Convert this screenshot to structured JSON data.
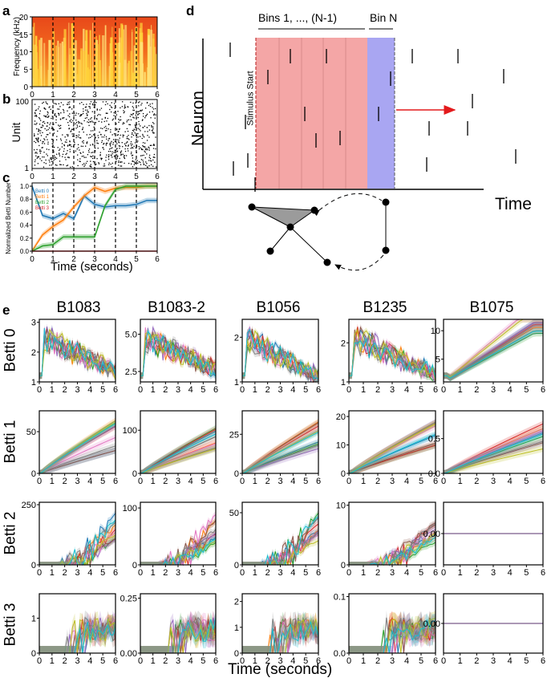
{
  "panels": {
    "a": {
      "letter": "a",
      "ylabel": "Frequency (kHz)",
      "yticks": [
        "0",
        "5",
        "10",
        "15",
        "20"
      ],
      "xticks": [
        "0",
        "1",
        "2",
        "3",
        "4",
        "5",
        "6"
      ]
    },
    "b": {
      "letter": "b",
      "ylabel": "Unit",
      "yticks": [
        "1",
        "100"
      ],
      "xticks": [
        "0",
        "1",
        "2",
        "3",
        "4",
        "5",
        "6"
      ]
    },
    "c": {
      "letter": "c",
      "ylabel": "Normalized Betti Number",
      "xlabel": "Time (seconds)",
      "yticks": [
        "0.0",
        "0.2",
        "0.4",
        "0.6",
        "0.8",
        "1.0"
      ],
      "xticks": [
        "0",
        "1",
        "2",
        "3",
        "4",
        "5",
        "6"
      ],
      "legend": [
        {
          "name": "Betti 0",
          "color": "#1f77b4"
        },
        {
          "name": "Betti 1",
          "color": "#ff7f0e"
        },
        {
          "name": "Betti 2",
          "color": "#2ca02c"
        },
        {
          "name": "Betti 3",
          "color": "#d62728"
        }
      ]
    },
    "d": {
      "letter": "d",
      "ylabel": "Neuron",
      "xlabel": "Time",
      "bins_label": "Bins 1, ..., (N-1)",
      "binN_label": "Bin N",
      "stimulus_label": "Stimulus Start"
    },
    "e": {
      "letter": "e",
      "xlabel": "Time (seconds)",
      "columns": [
        "B1083",
        "B1083-2",
        "B1056",
        "B1235",
        "B1075"
      ],
      "rows": [
        "Betti 0",
        "Betti 1",
        "Betti 2",
        "Betti 3"
      ],
      "xticks": [
        "0",
        "1",
        "2",
        "3",
        "4",
        "5",
        "6"
      ]
    }
  },
  "colors": {
    "betti0": "#1f77b4",
    "betti1": "#ff7f0e",
    "betti2": "#2ca02c",
    "betti3": "#d62728",
    "bins_fill": "#f4a6a6",
    "binN_fill": "#a9a6f2",
    "arrow": "#e31a1c"
  },
  "chart_data": [
    {
      "panel": "a",
      "type": "heatmap",
      "title": "",
      "xlabel": "",
      "ylabel": "Frequency (kHz)",
      "xlim": [
        0,
        6
      ],
      "ylim": [
        0,
        20
      ],
      "vlines": [
        1,
        2,
        3,
        4,
        5
      ]
    },
    {
      "panel": "b",
      "type": "scatter",
      "title": "",
      "xlabel": "",
      "ylabel": "Unit",
      "xlim": [
        0,
        6
      ],
      "ylim": [
        1,
        100
      ],
      "vlines": [
        1,
        2,
        3,
        4,
        5
      ]
    },
    {
      "panel": "c",
      "type": "line",
      "title": "",
      "xlabel": "Time (seconds)",
      "ylabel": "Normalized Betti Number",
      "xlim": [
        0,
        6
      ],
      "ylim": [
        0,
        1.05
      ],
      "vlines": [
        1,
        2,
        3,
        4,
        5
      ],
      "x": [
        0,
        0.5,
        1,
        1.5,
        2,
        2.5,
        3,
        3.5,
        4,
        4.5,
        5,
        5.5,
        6
      ],
      "series": [
        {
          "name": "Betti 0",
          "values": [
            1.0,
            0.55,
            0.5,
            0.58,
            0.5,
            0.85,
            0.72,
            0.68,
            0.7,
            0.7,
            0.72,
            0.78,
            0.78
          ]
        },
        {
          "name": "Betti 1",
          "values": [
            0.0,
            0.25,
            0.38,
            0.48,
            0.68,
            0.85,
            0.98,
            0.92,
            0.97,
            0.98,
            0.98,
            1.0,
            1.0
          ]
        },
        {
          "name": "Betti 2",
          "values": [
            0.0,
            0.08,
            0.1,
            0.22,
            0.22,
            0.22,
            0.22,
            0.7,
            0.95,
            1.0,
            1.0,
            1.0,
            1.0
          ]
        },
        {
          "name": "Betti 3",
          "values": [
            0,
            0,
            0,
            0,
            0,
            0,
            0,
            0,
            0,
            0,
            0,
            0,
            0
          ]
        }
      ]
    },
    {
      "panel": "e",
      "type": "line",
      "title": "B1083 Betti 0",
      "ylim": [
        1,
        3.1
      ],
      "yticks": [
        "1",
        "2",
        "3"
      ],
      "xlim": [
        0,
        6
      ]
    },
    {
      "panel": "e",
      "type": "line",
      "title": "B1083-2 Betti 0",
      "ylim": [
        1.8,
        6
      ],
      "yticks": [
        "2.5",
        "5.0"
      ],
      "xlim": [
        0,
        6
      ]
    },
    {
      "panel": "e",
      "type": "line",
      "title": "B1056 Betti 0",
      "ylim": [
        1,
        2.4
      ],
      "yticks": [
        "1",
        "2"
      ],
      "xlim": [
        0,
        6
      ]
    },
    {
      "panel": "e",
      "type": "line",
      "title": "B1235 Betti 0",
      "ylim": [
        1,
        2.6
      ],
      "yticks": [
        "1",
        "2"
      ],
      "xlim": [
        0,
        6
      ]
    },
    {
      "panel": "e",
      "type": "line",
      "title": "B1075 Betti 0",
      "ylim": [
        1,
        12
      ],
      "yticks": [
        "5",
        "10"
      ],
      "xlim": [
        0,
        6
      ]
    },
    {
      "panel": "e",
      "type": "line",
      "title": "B1083 Betti 1",
      "ylim": [
        0,
        75
      ],
      "yticks": [
        "0",
        "50"
      ],
      "xlim": [
        0,
        6
      ]
    },
    {
      "panel": "e",
      "type": "line",
      "title": "B1083-2 Betti 1",
      "ylim": [
        0,
        145
      ],
      "yticks": [
        "0",
        "100"
      ],
      "xlim": [
        0,
        6
      ]
    },
    {
      "panel": "e",
      "type": "line",
      "title": "B1056 Betti 1",
      "ylim": [
        0,
        40
      ],
      "yticks": [
        "0",
        "25"
      ],
      "xlim": [
        0,
        6
      ]
    },
    {
      "panel": "e",
      "type": "line",
      "title": "B1235 Betti 1",
      "ylim": [
        0,
        22
      ],
      "yticks": [
        "0",
        "10",
        "20"
      ],
      "xlim": [
        0,
        6
      ]
    },
    {
      "panel": "e",
      "type": "line",
      "title": "B1075 Betti 1",
      "ylim": [
        0,
        0.9
      ],
      "yticks": [
        "0.0",
        "0.5"
      ],
      "xlim": [
        0,
        6
      ]
    },
    {
      "panel": "e",
      "type": "line",
      "title": "B1083 Betti 2",
      "ylim": [
        0,
        260
      ],
      "yticks": [
        "0",
        "250"
      ],
      "xlim": [
        0,
        6
      ]
    },
    {
      "panel": "e",
      "type": "line",
      "title": "B1083-2 Betti 2",
      "ylim": [
        0,
        110
      ],
      "yticks": [
        "0",
        "100"
      ],
      "xlim": [
        0,
        6
      ]
    },
    {
      "panel": "e",
      "type": "line",
      "title": "B1056 Betti 2",
      "ylim": [
        0,
        60
      ],
      "yticks": [
        "0",
        "50"
      ],
      "xlim": [
        0,
        6
      ]
    },
    {
      "panel": "e",
      "type": "line",
      "title": "B1235 Betti 2",
      "ylim": [
        0,
        10.5
      ],
      "yticks": [
        "0",
        "10"
      ],
      "xlim": [
        0,
        6
      ]
    },
    {
      "panel": "e",
      "type": "line",
      "title": "B1075 Betti 2",
      "ylim": [
        -1,
        1
      ],
      "yticks": [
        "0.00"
      ],
      "xlim": [
        0,
        6
      ]
    },
    {
      "panel": "e",
      "type": "line",
      "title": "B1083 Betti 3",
      "ylim": [
        0,
        1.7
      ],
      "yticks": [
        "0",
        "1"
      ],
      "xlim": [
        0,
        6
      ]
    },
    {
      "panel": "e",
      "type": "line",
      "title": "B1083-2 Betti 3",
      "ylim": [
        0,
        0.27
      ],
      "yticks": [
        "0.00",
        "0.25"
      ],
      "xlim": [
        0,
        6
      ]
    },
    {
      "panel": "e",
      "type": "line",
      "title": "B1056 Betti 3",
      "ylim": [
        0,
        2.3
      ],
      "yticks": [
        "0",
        "1",
        "2"
      ],
      "xlim": [
        0,
        6
      ]
    },
    {
      "panel": "e",
      "type": "line",
      "title": "B1235 Betti 3",
      "ylim": [
        0,
        0.105
      ],
      "yticks": [
        "0.0",
        "0.1"
      ],
      "xlim": [
        0,
        6
      ]
    },
    {
      "panel": "e",
      "type": "line",
      "title": "B1075 Betti 3",
      "ylim": [
        -1,
        1
      ],
      "yticks": [
        "0.00"
      ],
      "xlim": [
        0,
        6
      ]
    }
  ]
}
